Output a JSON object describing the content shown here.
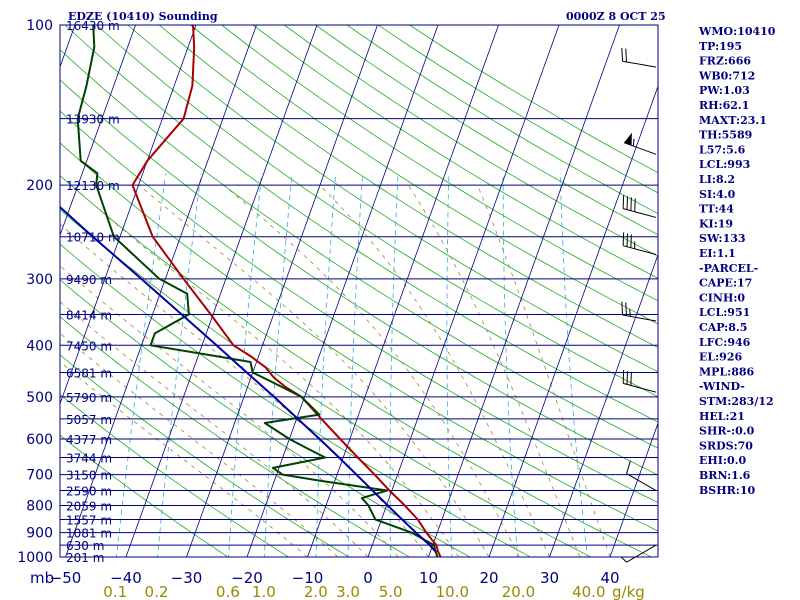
{
  "header": {
    "station": "EDZE (10410) Sounding",
    "time": "0000Z  8 OCT 25"
  },
  "units": {
    "pressure": "mb",
    "mixing_ratio": "g/kg"
  },
  "chart_data": {
    "type": "line",
    "title": "EDZE (10410) Sounding",
    "subtitle": "0000Z  8 OCT 25",
    "y_axis": "pressure (mb), logarithmic, inverted",
    "ylim": [
      1000,
      100
    ],
    "xlim": [
      -50,
      50
    ],
    "pressure_ticks": [
      100,
      200,
      300,
      400,
      500,
      600,
      700,
      800,
      900,
      1000
    ],
    "temperature_ticks": [
      -50,
      -40,
      -30,
      -20,
      -10,
      0,
      10,
      20,
      30,
      40
    ],
    "temperature_tick_labels": [
      "−50",
      "−40",
      "−30",
      "−20",
      "−10",
      "0",
      "10",
      "20",
      "30",
      "40"
    ],
    "mixing_ratio_labels": [
      "0.1",
      "0.2",
      "0.6",
      "1.0",
      "2.0",
      "3.0",
      "5.0",
      "10.0",
      "20.0",
      "40.0"
    ],
    "height_labels": [
      {
        "p": 100,
        "label": "16430 m"
      },
      {
        "p": 150,
        "label": "13930 m"
      },
      {
        "p": 200,
        "label": "12130 m"
      },
      {
        "p": 250,
        "label": "10710 m"
      },
      {
        "p": 300,
        "label": "9490 m"
      },
      {
        "p": 350,
        "label": "8414 m"
      },
      {
        "p": 400,
        "label": "7450 m"
      },
      {
        "p": 450,
        "label": "6581 m"
      },
      {
        "p": 500,
        "label": "5790 m"
      },
      {
        "p": 550,
        "label": "5057 m"
      },
      {
        "p": 600,
        "label": "4377 m"
      },
      {
        "p": 650,
        "label": "3744 m"
      },
      {
        "p": 700,
        "label": "3150 m"
      },
      {
        "p": 750,
        "label": "2590 m"
      },
      {
        "p": 800,
        "label": "2059 m"
      },
      {
        "p": 850,
        "label": "1557 m"
      },
      {
        "p": 900,
        "label": "1081 m"
      },
      {
        "p": 950,
        "label": "630 m"
      },
      {
        "p": 1000,
        "label": "201 m"
      }
    ],
    "series": [
      {
        "color": "#aa0000",
        "points": [
          {
            "p": 1000,
            "t": 12.0
          },
          {
            "p": 975,
            "t": 11.2
          },
          {
            "p": 950,
            "t": 10.6
          },
          {
            "p": 925,
            "t": 9.4
          },
          {
            "p": 900,
            "t": 8.2
          },
          {
            "p": 850,
            "t": 6.0
          },
          {
            "p": 800,
            "t": 3.0
          },
          {
            "p": 750,
            "t": -0.4
          },
          {
            "p": 700,
            "t": -3.8
          },
          {
            "p": 650,
            "t": -7.6
          },
          {
            "p": 600,
            "t": -11.6
          },
          {
            "p": 550,
            "t": -15.9
          },
          {
            "p": 500,
            "t": -20.5
          },
          {
            "p": 480,
            "t": -23.6
          },
          {
            "p": 460,
            "t": -26.2
          },
          {
            "p": 440,
            "t": -28.2
          },
          {
            "p": 420,
            "t": -31.2
          },
          {
            "p": 400,
            "t": -34.8
          },
          {
            "p": 350,
            "t": -40.4
          },
          {
            "p": 300,
            "t": -47.0
          },
          {
            "p": 250,
            "t": -54.6
          },
          {
            "p": 200,
            "t": -61.0
          },
          {
            "p": 180,
            "t": -60.0
          },
          {
            "p": 150,
            "t": -56.5
          },
          {
            "p": 130,
            "t": -57.0
          },
          {
            "p": 110,
            "t": -59.0
          },
          {
            "p": 100,
            "t": -60.5
          }
        ]
      },
      {
        "color": "#004000",
        "points": [
          {
            "p": 1000,
            "t": 11.5
          },
          {
            "p": 975,
            "t": 10.8
          },
          {
            "p": 950,
            "t": 10.2
          },
          {
            "p": 900,
            "t": 5.8
          },
          {
            "p": 850,
            "t": -1.0
          },
          {
            "p": 800,
            "t": -3.0
          },
          {
            "p": 775,
            "t": -4.5
          },
          {
            "p": 750,
            "t": -0.8
          },
          {
            "p": 720,
            "t": -12.0
          },
          {
            "p": 700,
            "t": -19.0
          },
          {
            "p": 680,
            "t": -21.0
          },
          {
            "p": 650,
            "t": -13.0
          },
          {
            "p": 625,
            "t": -16.5
          },
          {
            "p": 600,
            "t": -20.0
          },
          {
            "p": 560,
            "t": -25.0
          },
          {
            "p": 540,
            "t": -16.5
          },
          {
            "p": 500,
            "t": -20.5
          },
          {
            "p": 470,
            "t": -26.0
          },
          {
            "p": 450,
            "t": -30.0
          },
          {
            "p": 430,
            "t": -31.0
          },
          {
            "p": 420,
            "t": -36.5
          },
          {
            "p": 400,
            "t": -48.5
          },
          {
            "p": 380,
            "t": -48.5
          },
          {
            "p": 350,
            "t": -44.0
          },
          {
            "p": 320,
            "t": -45.5
          },
          {
            "p": 300,
            "t": -51.0
          },
          {
            "p": 250,
            "t": -61.0
          },
          {
            "p": 200,
            "t": -67.0
          },
          {
            "p": 190,
            "t": -67.5
          },
          {
            "p": 180,
            "t": -71.0
          },
          {
            "p": 150,
            "t": -74.0
          },
          {
            "p": 130,
            "t": -74.5
          },
          {
            "p": 110,
            "t": -75.5
          },
          {
            "p": 100,
            "t": -77.0
          }
        ]
      },
      {
        "color": "#0000aa",
        "points": [
          {
            "p": 980,
            "t": 11.0
          },
          {
            "p": 950,
            "t": 9.5
          },
          {
            "p": 900,
            "t": 6.5
          },
          {
            "p": 850,
            "t": 3.4
          },
          {
            "p": 800,
            "t": 0.2
          },
          {
            "p": 750,
            "t": -3.2
          },
          {
            "p": 700,
            "t": -6.8
          },
          {
            "p": 650,
            "t": -10.7
          },
          {
            "p": 600,
            "t": -15.0
          },
          {
            "p": 550,
            "t": -19.8
          },
          {
            "p": 500,
            "t": -25.0
          },
          {
            "p": 450,
            "t": -31.0
          },
          {
            "p": 400,
            "t": -37.6
          },
          {
            "p": 350,
            "t": -45.2
          },
          {
            "p": 300,
            "t": -54.0
          },
          {
            "p": 250,
            "t": -64.5
          },
          {
            "p": 200,
            "t": -77.0
          },
          {
            "p": 150,
            "t": -92.0
          },
          {
            "p": 100,
            "t": -113.0
          }
        ]
      }
    ],
    "wind_barbs": [
      {
        "p": 120,
        "dir": 280,
        "speed_kt": 20
      },
      {
        "p": 175,
        "dir": 290,
        "speed_kt": 55
      },
      {
        "p": 230,
        "dir": 285,
        "speed_kt": 40
      },
      {
        "p": 270,
        "dir": 285,
        "speed_kt": 35
      },
      {
        "p": 360,
        "dir": 280,
        "speed_kt": 25
      },
      {
        "p": 490,
        "dir": 285,
        "speed_kt": 30
      },
      {
        "p": 750,
        "dir": 300,
        "speed_kt": 10
      },
      {
        "p": 950,
        "dir": 240,
        "speed_kt": 5
      }
    ]
  },
  "indices": [
    "WMO:10410",
    "TP:195",
    "FRZ:666",
    "WB0:712",
    "PW:1.03",
    "RH:62.1",
    "MAXT:23.1",
    "TH:5589",
    "L57:5.6",
    "LCL:993",
    "LI:8.2",
    "SI:4.0",
    "TT:44",
    "KI:19",
    "SW:133",
    "EI:1.1",
    "-PARCEL-",
    "CAPE:17",
    "CINH:0",
    "LCL:951",
    "CAP:8.5",
    "LFC:946",
    "EL:926",
    "MPL:886",
    "-WIND-",
    "STM:283/12",
    "HEL:21",
    "SHR-:0.0",
    "SRDS:70",
    "EHI:0.0",
    "BRN:1.6",
    "BSHR:10"
  ]
}
